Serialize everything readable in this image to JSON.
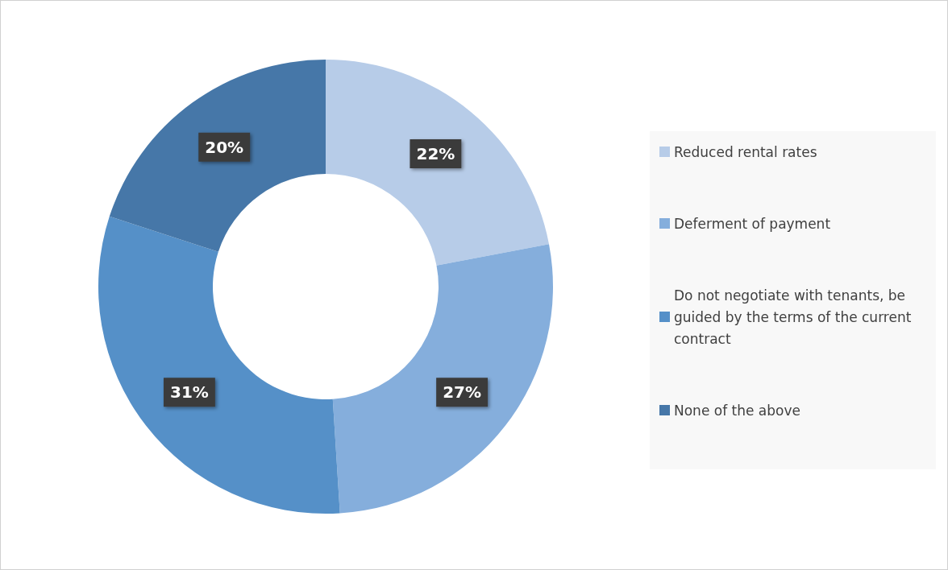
{
  "chart_data": {
    "type": "donut",
    "categories": [
      "Reduced rental rates",
      "Deferment of payment",
      "Do not negotiate with tenants, be guided by the terms of the current contract",
      "None of the above"
    ],
    "values": [
      22,
      27,
      31,
      20
    ],
    "colors": [
      "#b7cce8",
      "#85aedc",
      "#5590c8",
      "#4677a8"
    ],
    "value_labels": [
      "22%",
      "27%",
      "31%",
      "20%"
    ],
    "legend": "right"
  }
}
